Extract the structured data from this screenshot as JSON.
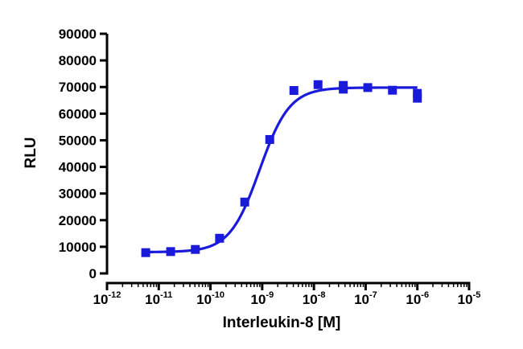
{
  "chart_data": {
    "type": "scatter",
    "title": "",
    "xlabel": "Interleukin-8 [M]",
    "ylabel": "RLU",
    "x_scale": "log10",
    "xlim": [
      1e-12,
      1e-05
    ],
    "ylim": [
      0,
      90000
    ],
    "x_ticks": [
      {
        "base": "10",
        "exp": "-12",
        "value": 1e-12
      },
      {
        "base": "10",
        "exp": "-11",
        "value": 1e-11
      },
      {
        "base": "10",
        "exp": "-10",
        "value": 1e-10
      },
      {
        "base": "10",
        "exp": "-9",
        "value": 1e-09
      },
      {
        "base": "10",
        "exp": "-8",
        "value": 1e-08
      },
      {
        "base": "10",
        "exp": "-7",
        "value": 1e-07
      },
      {
        "base": "10",
        "exp": "-6",
        "value": 1e-06
      },
      {
        "base": "10",
        "exp": "-5",
        "value": 1e-05
      }
    ],
    "y_ticks": [
      "0",
      "10000",
      "20000",
      "30000",
      "40000",
      "50000",
      "60000",
      "70000",
      "80000",
      "90000"
    ],
    "grid": false,
    "legend": "none",
    "color": "#1a1adb",
    "series": [
      {
        "marker": "square",
        "points": [
          {
            "x": 5.6e-12,
            "y": 7800
          },
          {
            "x": 1.7e-11,
            "y": 8200
          },
          {
            "x": 5.1e-11,
            "y": 9000
          },
          {
            "x": 1.5e-10,
            "y": 13200
          },
          {
            "x": 4.6e-10,
            "y": 26800
          },
          {
            "x": 1.4e-09,
            "y": 50300
          },
          {
            "x": 4.1e-09,
            "y": 68700
          },
          {
            "x": 1.2e-08,
            "y": 70900
          },
          {
            "x": 3.7e-08,
            "y": 70600
          },
          {
            "x": 3.7e-08,
            "y": 69200
          },
          {
            "x": 1.1e-07,
            "y": 69800
          },
          {
            "x": 3.3e-07,
            "y": 68800
          },
          {
            "x": 1e-06,
            "y": 67600
          },
          {
            "x": 1e-06,
            "y": 65800
          }
        ]
      }
    ],
    "fit": {
      "model": "four-parameter logistic",
      "bottom": 8000,
      "top": 69800,
      "log_ec50": -9.05,
      "hill": 1.5,
      "x_range": [
        5.6e-12,
        1e-06
      ]
    }
  }
}
